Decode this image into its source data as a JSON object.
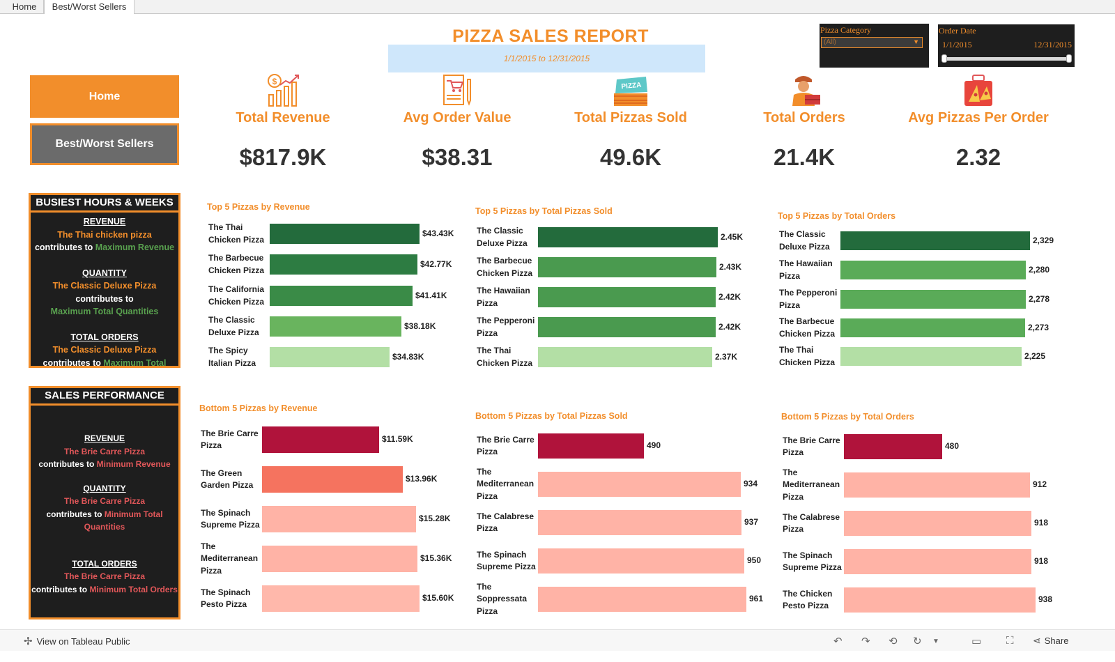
{
  "tabs": [
    {
      "label": "Home"
    },
    {
      "label": "Best/Worst Sellers"
    }
  ],
  "report": {
    "title": "PIZZA SALES REPORT",
    "date_range": "1/1/2015 to 12/31/2015"
  },
  "filters": {
    "category_label": "Pizza Category",
    "category_value": "(All)",
    "date_label": "Order Date",
    "date_start": "1/1/2015",
    "date_end": "12/31/2015"
  },
  "nav": {
    "home": "Home",
    "best_worst": "Best/Worst Sellers"
  },
  "kpis": [
    {
      "label": "Total Revenue",
      "value": "$817.9K",
      "icon": "revenue-chart-icon"
    },
    {
      "label": "Avg Order Value",
      "value": "$38.31",
      "icon": "order-receipt-icon"
    },
    {
      "label": "Total Pizzas Sold",
      "value": "49.6K",
      "icon": "pizza-box-icon"
    },
    {
      "label": "Total Orders",
      "value": "21.4K",
      "icon": "delivery-person-icon"
    },
    {
      "label": "Avg Pizzas Per Order",
      "value": "2.32",
      "icon": "pizza-slices-icon"
    }
  ],
  "panels": {
    "busiest": {
      "title": "BUSIEST HOURS & WEEKS",
      "revenue_head": "REVENUE",
      "revenue_pizza": "The Thai chicken pizza",
      "revenue_contrib": "contributes to",
      "revenue_target": "Maximum Revenue",
      "quantity_head": "QUANTITY",
      "quantity_pizza": "The Classic Deluxe Pizza",
      "quantity_contrib": "contributes to",
      "quantity_target": "Maximum Total Quantities",
      "orders_head": "TOTAL ORDERS",
      "orders_pizza": "The Classic Deluxe Pizza",
      "orders_contrib": "contributes to",
      "orders_target": "Maximum Total"
    },
    "sales": {
      "title": "SALES PERFORMANCE",
      "revenue_head": "REVENUE",
      "revenue_pizza": "The Brie Carre Pizza",
      "revenue_contrib": "contributes to",
      "revenue_target": "Minimum Revenue",
      "quantity_head": "QUANTITY",
      "quantity_pizza": "The Brie Carre Pizza",
      "quantity_contrib": "contributes to",
      "quantity_target": "Minimum Total",
      "quantity_target2": "Quantities",
      "orders_head": "TOTAL ORDERS",
      "orders_pizza": "The Brie Carre Pizza",
      "orders_contrib": "contributes to",
      "orders_target": "Minimum Total Orders"
    }
  },
  "chart_data": [
    {
      "id": "top-revenue",
      "type": "bar",
      "orientation": "horizontal",
      "title": "Top 5 Pizzas by Revenue",
      "categories": [
        [
          "The Thai",
          "Chicken Pizza"
        ],
        [
          "The Barbecue",
          "Chicken Pizza"
        ],
        [
          "The California",
          "Chicken Pizza"
        ],
        [
          "The Classic",
          "Deluxe Pizza"
        ],
        [
          "The Spicy",
          "Italian Pizza"
        ]
      ],
      "values": [
        43.43,
        42.77,
        41.41,
        38.18,
        34.83
      ],
      "labels": [
        "$43.43K",
        "$42.77K",
        "$41.41K",
        "$38.18K",
        "$34.83K"
      ],
      "unit": "$K",
      "colors": [
        "#236b3c",
        "#2d7c42",
        "#3a8b47",
        "#69b45e",
        "#b3dfa5"
      ]
    },
    {
      "id": "top-sold",
      "type": "bar",
      "orientation": "horizontal",
      "title": "Top 5 Pizzas by Total Pizzas Sold",
      "categories": [
        [
          "The Classic",
          "Deluxe Pizza"
        ],
        [
          "The Barbecue",
          "Chicken Pizza"
        ],
        [
          "The Hawaiian",
          "Pizza"
        ],
        [
          "The Pepperoni",
          "Pizza"
        ],
        [
          "The Thai",
          "Chicken Pizza"
        ]
      ],
      "values": [
        2.45,
        2.43,
        2.42,
        2.42,
        2.37
      ],
      "labels": [
        "2.45K",
        "2.43K",
        "2.42K",
        "2.42K",
        "2.37K"
      ],
      "unit": "K",
      "colors": [
        "#236b3c",
        "#4a9a4f",
        "#4a9a4f",
        "#4a9a4f",
        "#b3dfa5"
      ]
    },
    {
      "id": "top-orders",
      "type": "bar",
      "orientation": "horizontal",
      "title": "Top 5 Pizzas by Total Orders",
      "categories": [
        [
          "The Classic",
          "Deluxe Pizza"
        ],
        [
          "The Hawaiian",
          "Pizza"
        ],
        [
          "The Pepperoni",
          "Pizza"
        ],
        [
          "The Barbecue",
          "Chicken Pizza"
        ],
        [
          "The Thai",
          "Chicken Pizza"
        ]
      ],
      "values": [
        2329,
        2280,
        2278,
        2273,
        2225
      ],
      "labels": [
        "2,329",
        "2,280",
        "2,278",
        "2,273",
        "2,225"
      ],
      "colors": [
        "#236b3c",
        "#5aab58",
        "#5aab58",
        "#5aab58",
        "#b3dfa5"
      ]
    },
    {
      "id": "bottom-revenue",
      "type": "bar",
      "orientation": "horizontal",
      "title": "Bottom 5 Pizzas by Revenue",
      "categories": [
        [
          "The Brie Carre",
          "Pizza"
        ],
        [
          "The Green",
          "Garden Pizza"
        ],
        [
          "The Spinach",
          "Supreme Pizza"
        ],
        [
          "The",
          "Mediterranean",
          "Pizza"
        ],
        [
          "The Spinach",
          "Pesto Pizza"
        ]
      ],
      "values": [
        11.59,
        13.96,
        15.28,
        15.36,
        15.6
      ],
      "labels": [
        "$11.59K",
        "$13.96K",
        "$15.28K",
        "$15.36K",
        "$15.60K"
      ],
      "unit": "$K",
      "colors": [
        "#b0133b",
        "#f5735f",
        "#ffb3a6",
        "#ffb3a6",
        "#ffb8ab"
      ]
    },
    {
      "id": "bottom-sold",
      "type": "bar",
      "orientation": "horizontal",
      "title": "Bottom 5 Pizzas by Total Pizzas Sold",
      "categories": [
        [
          "The Brie Carre",
          "Pizza"
        ],
        [
          "The",
          "Mediterranean",
          "Pizza"
        ],
        [
          "The Calabrese",
          "Pizza"
        ],
        [
          "The Spinach",
          "Supreme Pizza"
        ],
        [
          "The",
          "Soppressata",
          "Pizza"
        ]
      ],
      "values": [
        490,
        934,
        937,
        950,
        961
      ],
      "labels": [
        "490",
        "934",
        "937",
        "950",
        "961"
      ],
      "colors": [
        "#b0133b",
        "#ffb3a6",
        "#ffb3a6",
        "#ffb3a6",
        "#ffb3a6"
      ]
    },
    {
      "id": "bottom-orders",
      "type": "bar",
      "orientation": "horizontal",
      "title": "Bottom 5 Pizzas by Total Orders",
      "categories": [
        [
          "The Brie Carre",
          "Pizza"
        ],
        [
          "The",
          "Mediterranean",
          "Pizza"
        ],
        [
          "The Calabrese",
          "Pizza"
        ],
        [
          "The Spinach",
          "Supreme Pizza"
        ],
        [
          "The Chicken",
          "Pesto Pizza"
        ]
      ],
      "values": [
        480,
        912,
        918,
        918,
        938
      ],
      "labels": [
        "480",
        "912",
        "918",
        "918",
        "938"
      ],
      "colors": [
        "#b0133b",
        "#ffb3a6",
        "#ffb3a6",
        "#ffb3a6",
        "#ffb3a6"
      ]
    }
  ],
  "toolbar": {
    "view_on": "View on Tableau Public",
    "share": "Share"
  }
}
